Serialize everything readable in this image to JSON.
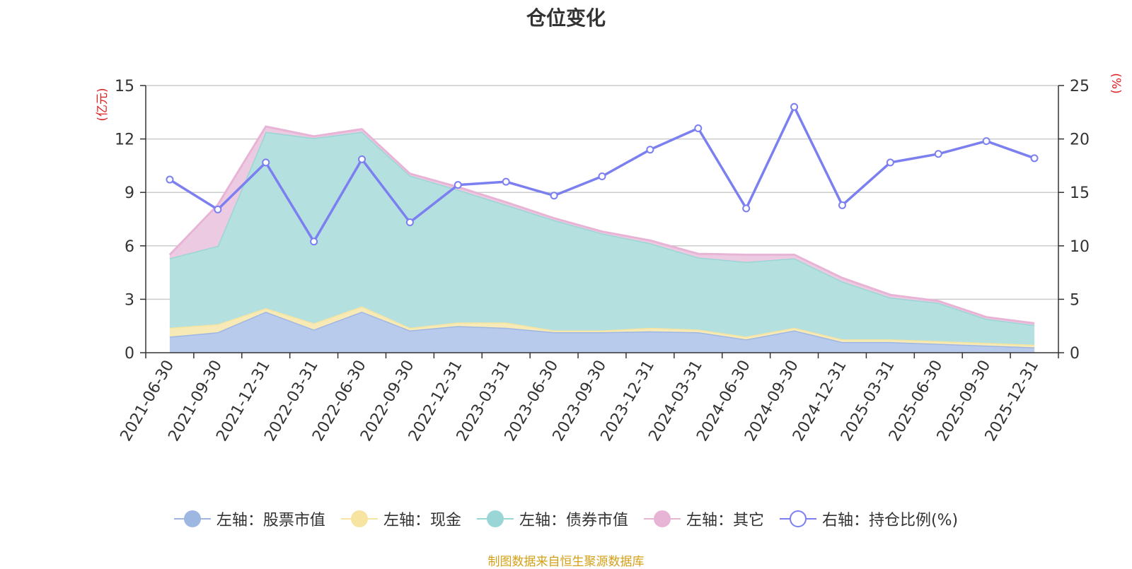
{
  "title": "仓位变化",
  "source": "制图数据来自恒生聚源数据库",
  "chart_data": {
    "type": "area",
    "categories": [
      "2021-06-30",
      "2021-09-30",
      "2021-12-31",
      "2022-03-31",
      "2022-06-30",
      "2022-09-30",
      "2022-12-31",
      "2023-03-31",
      "2023-06-30",
      "2023-09-30",
      "2023-12-31",
      "2024-03-31",
      "2024-06-30",
      "2024-09-30",
      "2024-12-31",
      "2025-03-31",
      "2025-06-30",
      "2025-09-30",
      "2025-12-31"
    ],
    "left_axis": {
      "label": "(亿元)",
      "min": 0,
      "max": 15,
      "ticks": [
        "0",
        "3",
        "6",
        "9",
        "12",
        "15"
      ]
    },
    "right_axis": {
      "label": "(%)",
      "min": 0,
      "max": 25,
      "ticks": [
        "0",
        "5",
        "10",
        "15",
        "20",
        "25"
      ]
    },
    "stacked_series": [
      {
        "name": "左轴：股票市值",
        "color": "#9eb7e2",
        "fill": "#b9cbec",
        "values": [
          0.9,
          1.15,
          2.3,
          1.3,
          2.3,
          1.25,
          1.5,
          1.4,
          1.15,
          1.15,
          1.2,
          1.15,
          0.75,
          1.25,
          0.6,
          0.6,
          0.5,
          0.4,
          0.3
        ]
      },
      {
        "name": "左轴：现金",
        "color": "#f6e4a0",
        "fill": "#f7eab7",
        "values": [
          0.5,
          0.45,
          0.2,
          0.35,
          0.3,
          0.15,
          0.2,
          0.3,
          0.1,
          0.1,
          0.2,
          0.15,
          0.15,
          0.15,
          0.15,
          0.15,
          0.15,
          0.15,
          0.15
        ]
      },
      {
        "name": "左轴：债券市值",
        "color": "#9ad6d6",
        "fill": "#b4e0e0",
        "values": [
          3.9,
          4.4,
          9.9,
          10.4,
          9.8,
          8.55,
          7.45,
          6.6,
          6.2,
          5.45,
          4.75,
          4.05,
          4.2,
          3.9,
          3.25,
          2.35,
          2.15,
          1.35,
          1.1
        ]
      },
      {
        "name": "左轴：其它",
        "color": "#e8b4d6",
        "fill": "#eccbe2",
        "values": [
          0.2,
          2.3,
          0.3,
          0.1,
          0.15,
          0.1,
          0.15,
          0.15,
          0.1,
          0.1,
          0.15,
          0.2,
          0.4,
          0.2,
          0.2,
          0.15,
          0.1,
          0.1,
          0.1
        ]
      }
    ],
    "line_series": {
      "name": "右轴：持仓比例(%)",
      "color": "#7b7ff0",
      "values": [
        16.2,
        13.4,
        17.8,
        10.4,
        18.1,
        12.2,
        15.7,
        16.0,
        14.7,
        16.5,
        19.0,
        21.0,
        13.5,
        23.0,
        13.8,
        17.8,
        18.6,
        19.8,
        18.2
      ]
    }
  }
}
